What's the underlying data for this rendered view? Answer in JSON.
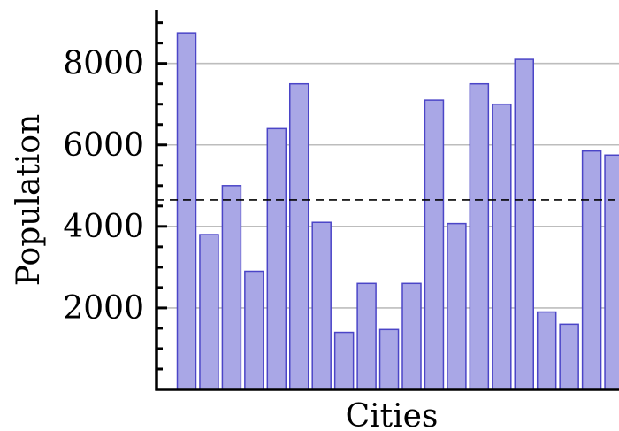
{
  "chart_data": {
    "type": "bar",
    "xlabel": "Cities",
    "ylabel": "Population",
    "ylim": [
      0,
      9200
    ],
    "yticks": [
      2000,
      4000,
      6000,
      8000
    ],
    "ytick_labels": [
      "2000",
      "4000",
      "6000",
      "8000"
    ],
    "grid": "horizontal",
    "values": [
      8750,
      3800,
      5000,
      2900,
      6400,
      7500,
      4100,
      1400,
      2600,
      1470,
      2600,
      7100,
      4070,
      7500,
      7000,
      8100,
      1900,
      1600,
      5850,
      5750
    ],
    "reference_line": {
      "value": 4650,
      "style": "dashed"
    },
    "colors": {
      "bar_fill": "#a9a7e6",
      "bar_edge": "#4b45c7",
      "grid": "#bdbdbd",
      "axis": "#000000",
      "reference_line": "#000000"
    }
  }
}
